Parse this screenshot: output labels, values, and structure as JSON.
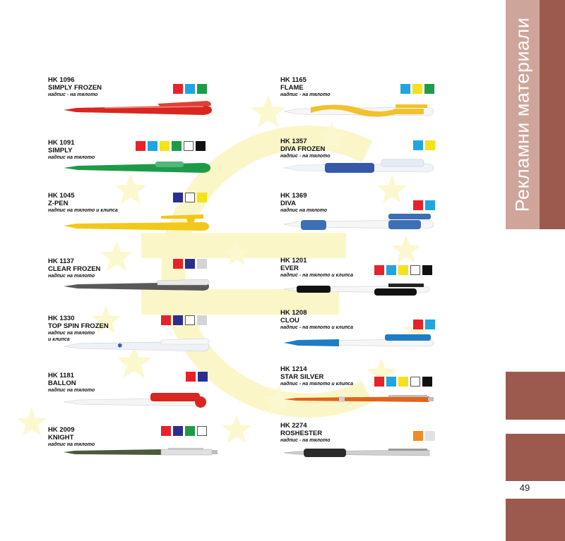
{
  "sidebar": {
    "title": "Рекламни материали"
  },
  "page": {
    "number": "49"
  },
  "products": [
    {
      "code": "HK 1096",
      "name": "SIMPLY FROZEN",
      "note": "надпис - на тялото",
      "colors": [
        "#e8222a",
        "#20a5e0",
        "#1e9b48"
      ]
    },
    {
      "code": "HK 1091",
      "name": "SIMPLY",
      "note": "надпис на тялото",
      "colors": [
        "#e8222a",
        "#20a5e0",
        "#f4e21a",
        "#1e9b48",
        "#ffffff",
        "#111111"
      ]
    },
    {
      "code": "HK 1045",
      "name": "Z-PEN",
      "note": "надпис на тялото и клипса",
      "colors": [
        "#2a2f8f",
        "#ffffff",
        "#f4e21a"
      ]
    },
    {
      "code": "HK 1137",
      "name": "CLEAR FROZEN",
      "note": "надпис на тялото",
      "colors": [
        "#e8222a",
        "#2a2f8f",
        "#d4d4d4"
      ]
    },
    {
      "code": "HK 1330",
      "name": "TOP SPIN FROZEN",
      "note": "надпис на тялото",
      "note2": "и клипса",
      "colors": [
        "#e8222a",
        "#2a2f8f",
        "#ffffff",
        "#d4d4d4"
      ]
    },
    {
      "code": "HK 1181",
      "name": "BALLON",
      "note": "надпис на тялото",
      "colors": [
        "#e8222a",
        "#2a2f8f"
      ]
    },
    {
      "code": "HK 2009",
      "name": "KNIGHT",
      "note": "надпис на тялото",
      "colors": [
        "#e8222a",
        "#2a2f8f",
        "#1e9b48",
        "#ffffff"
      ]
    },
    {
      "code": "HK 1165",
      "name": "FLAME",
      "note": "надпис - на тялото",
      "colors": [
        "#20a5e0",
        "#f4e21a",
        "#1e9b48"
      ]
    },
    {
      "code": "HK 1357",
      "name": "DIVA FROZEN",
      "note": "надпис - на тялото",
      "colors": [
        "#20a5e0",
        "#f4e21a"
      ]
    },
    {
      "code": "HK 1369",
      "name": "DIVA",
      "note": "надпис на тялото",
      "colors": [
        "#e8222a",
        "#20a5e0"
      ]
    },
    {
      "code": "HK 1201",
      "name": "EVER",
      "note": "надпис - на тялото и клипса",
      "colors": [
        "#e8222a",
        "#20a5e0",
        "#f4e21a",
        "#ffffff",
        "#111111"
      ]
    },
    {
      "code": "HK 1208",
      "name": "CLOU",
      "note": "надпис - на тялото и клипса",
      "colors": [
        "#e8222a",
        "#20a5e0"
      ]
    },
    {
      "code": "HK 1214",
      "name": "STAR SILVER",
      "note": "надпис - на тялото и клипса",
      "colors": [
        "#e8222a",
        "#20a5e0",
        "#f4e21a",
        "#ffffff",
        "#111111"
      ]
    },
    {
      "code": "HK 2274",
      "name": "ROSHESTER",
      "note": "надпис - на тялото",
      "colors": [
        "#f08a24",
        "#e2e2e2"
      ]
    }
  ]
}
